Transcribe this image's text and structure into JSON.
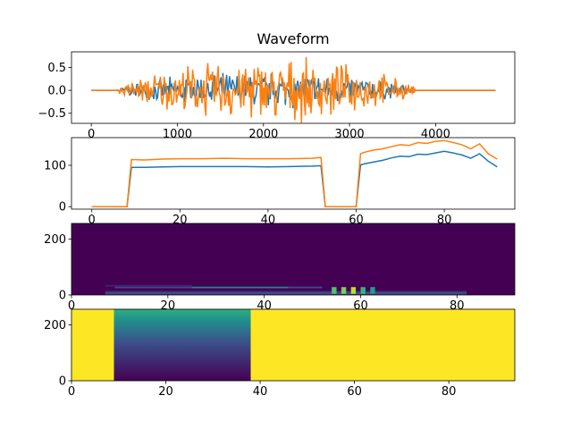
{
  "figure": {
    "title": "Waveform"
  },
  "chart_data": [
    {
      "type": "line",
      "title": "Waveform",
      "xlim": [
        -230,
        4920
      ],
      "ylim": [
        -0.72,
        0.84
      ],
      "xticks": [
        0,
        1000,
        2000,
        3000,
        4000
      ],
      "yticks": [
        -0.5,
        0.0,
        0.5
      ],
      "xticklabels": [
        "0",
        "1000",
        "2000",
        "3000",
        "4000"
      ],
      "yticklabels": [
        "−0.5",
        "0.0",
        "0.5"
      ],
      "signal_x_range": [
        0,
        4700
      ],
      "active_x_range": [
        300,
        4300
      ],
      "series": [
        {
          "color": "#1f77b4",
          "peak_amplitude": 0.45
        },
        {
          "color": "#ff7f0e",
          "peak_amplitude": 0.77
        }
      ]
    },
    {
      "type": "line",
      "xlim": [
        -4.6,
        96
      ],
      "ylim": [
        -6,
        167
      ],
      "xticks": [
        0,
        20,
        40,
        60,
        80
      ],
      "yticks": [
        0,
        100
      ],
      "xticklabels": [
        "0",
        "20",
        "40",
        "60",
        "80"
      ],
      "yticklabels": [
        "0",
        "100"
      ],
      "series": [
        {
          "color": "#1f77b4",
          "x": [
            0,
            8,
            9,
            12,
            16,
            20,
            25,
            30,
            35,
            40,
            45,
            50,
            52,
            53,
            60,
            61,
            62,
            64,
            66,
            68,
            70,
            72,
            74,
            76,
            78,
            80,
            82,
            84,
            86,
            88,
            90,
            92
          ],
          "y": [
            0,
            0,
            95,
            95,
            96,
            97,
            97,
            97,
            97,
            96,
            97,
            98,
            99,
            0,
            0,
            101,
            104,
            108,
            112,
            118,
            122,
            121,
            127,
            126,
            130,
            134,
            130,
            125,
            117,
            128,
            110,
            96
          ]
        },
        {
          "color": "#ff7f0e",
          "x": [
            0,
            8,
            9,
            12,
            16,
            20,
            25,
            30,
            35,
            40,
            45,
            50,
            52,
            53,
            60,
            61,
            62,
            64,
            66,
            68,
            70,
            72,
            74,
            76,
            78,
            80,
            82,
            84,
            86,
            88,
            90,
            92
          ],
          "y": [
            0,
            0,
            114,
            113,
            115,
            116,
            116,
            117,
            116,
            116,
            116,
            117,
            119,
            0,
            0,
            128,
            132,
            137,
            140,
            145,
            150,
            148,
            155,
            153,
            158,
            160,
            155,
            150,
            140,
            152,
            128,
            115
          ]
        }
      ]
    },
    {
      "type": "heatmap",
      "colormap": "viridis",
      "xlim": [
        0,
        92
      ],
      "ylim": [
        0,
        256
      ],
      "xticks": [
        0,
        20,
        40,
        60,
        80
      ],
      "yticks": [
        0,
        200
      ],
      "xticklabels": [
        "0",
        "20",
        "40",
        "60",
        "80"
      ],
      "yticklabels": [
        "0",
        "200"
      ],
      "background_value": 0.0,
      "bands": [
        {
          "x": [
            7,
            82
          ],
          "y": [
            2,
            8
          ],
          "value": 0.25
        },
        {
          "x": [
            7,
            82
          ],
          "y": [
            8,
            14
          ],
          "value": 0.15
        },
        {
          "x": [
            9,
            52
          ],
          "y": [
            24,
            30
          ],
          "value": 0.22
        },
        {
          "x": [
            25,
            45
          ],
          "y": [
            24,
            29
          ],
          "value": 0.45
        },
        {
          "x": [
            7,
            25
          ],
          "y": [
            30,
            36
          ],
          "value": 0.08
        }
      ],
      "bright_columns": [
        {
          "x": 54,
          "value": 0.72
        },
        {
          "x": 56,
          "value": 0.8
        },
        {
          "x": 58,
          "value": 0.9
        },
        {
          "x": 60,
          "value": 0.66
        },
        {
          "x": 62,
          "value": 0.55
        }
      ]
    },
    {
      "type": "heatmap",
      "colormap": "viridis",
      "xlim": [
        0,
        94
      ],
      "ylim": [
        0,
        256
      ],
      "xticks": [
        0,
        20,
        40,
        60,
        80
      ],
      "yticks": [
        0,
        200
      ],
      "xticklabels": [
        "0",
        "20",
        "40",
        "60",
        "80"
      ],
      "yticklabels": [
        "0",
        "200"
      ],
      "background_value": 1.0,
      "block": {
        "x": [
          9,
          38
        ],
        "y": [
          0,
          256
        ],
        "value_bottom": 0.0,
        "value_top": 0.55
      }
    }
  ]
}
